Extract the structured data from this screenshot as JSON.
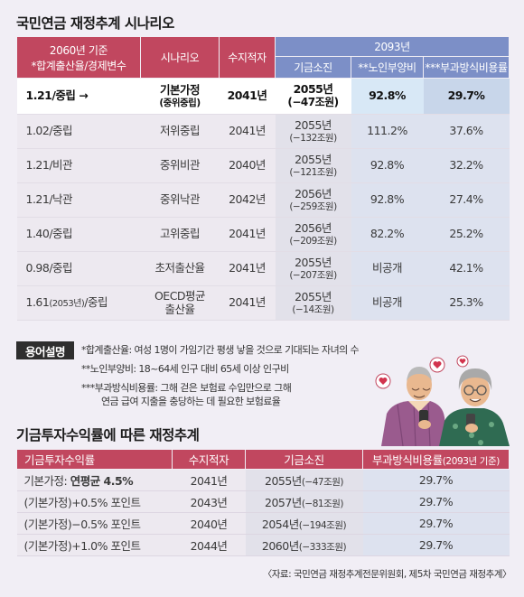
{
  "title": "국민연금 재정추계 시나리오",
  "scenario_table": {
    "headers": {
      "col0_line1": "2060년 기준",
      "col0_line2": "*합계출산율/경제변수",
      "scenario": "시나리오",
      "deficit_year": "수지적자",
      "group_2093": "2093년",
      "depletion": "기금소진",
      "dependency": "**노인부양비",
      "cost_rate": "***부과방식비용률"
    },
    "rows": [
      {
        "condition": "1.21/중립 →",
        "scenario": "기본가정",
        "scenario_sub": "(중위중립)",
        "deficit_year": "2041년",
        "depletion": "2055년",
        "depletion_sub": "(−47조원)",
        "dependency": "92.8%",
        "cost_rate": "29.7%"
      },
      {
        "condition": "1.02/중립",
        "scenario": "저위중립",
        "scenario_sub": "",
        "deficit_year": "2041년",
        "depletion": "2055년",
        "depletion_sub": "(−132조원)",
        "dependency": "111.2%",
        "cost_rate": "37.6%"
      },
      {
        "condition": "1.21/비관",
        "scenario": "중위비관",
        "scenario_sub": "",
        "deficit_year": "2040년",
        "depletion": "2055년",
        "depletion_sub": "(−121조원)",
        "dependency": "92.8%",
        "cost_rate": "32.2%"
      },
      {
        "condition": "1.21/낙관",
        "scenario": "중위낙관",
        "scenario_sub": "",
        "deficit_year": "2042년",
        "depletion": "2056년",
        "depletion_sub": "(−259조원)",
        "dependency": "92.8%",
        "cost_rate": "27.4%"
      },
      {
        "condition": "1.40/중립",
        "scenario": "고위중립",
        "scenario_sub": "",
        "deficit_year": "2041년",
        "depletion": "2056년",
        "depletion_sub": "(−209조원)",
        "dependency": "82.2%",
        "cost_rate": "25.2%"
      },
      {
        "condition": "0.98/중립",
        "scenario": "초저출산율",
        "scenario_sub": "",
        "deficit_year": "2041년",
        "depletion": "2055년",
        "depletion_sub": "(−207조원)",
        "dependency": "비공개",
        "cost_rate": "42.1%"
      },
      {
        "condition": "1.61",
        "condition_year": "(2053년)",
        "condition_tail": "/중립",
        "scenario": "OECD평균",
        "scenario_sub": "출산율",
        "deficit_year": "2041년",
        "depletion": "2055년",
        "depletion_sub": "(−14조원)",
        "dependency": "비공개",
        "cost_rate": "25.3%"
      }
    ]
  },
  "glossary": {
    "badge": "용어설명",
    "line1": "*합계출산율: 여성 1명이 가임기간 평생 낳을 것으로 기대되는 자녀의 수",
    "line2": "**노인부양비: 18~64세 인구 대비 65세 이상 인구비",
    "line3": "***부과방식비용률: 그해 걷은 보험료 수입만으로 그해",
    "line4": "연금 급여 지출을 충당하는 데 필요한 보험료율"
  },
  "return_section": {
    "title": "기금투자수익률에 따른 재정추계",
    "headers": {
      "return": "기금투자수익률",
      "deficit_year": "수지적자",
      "depletion": "기금소진",
      "cost_rate": "부과방식비용률",
      "cost_rate_note": "(2093년 기준)"
    },
    "rows": [
      {
        "label": "기본가정: ",
        "label_bold": "연평균 4.5%",
        "deficit_year": "2041년",
        "depletion": "2055년",
        "depletion_sub": "(−47조원)",
        "cost_rate": "29.7%"
      },
      {
        "label": "(기본가정)+0.5% 포인트",
        "label_bold": "",
        "deficit_year": "2043년",
        "depletion": "2057년",
        "depletion_sub": "(−81조원)",
        "cost_rate": "29.7%"
      },
      {
        "label": "(기본가정)−0.5% 포인트",
        "label_bold": "",
        "deficit_year": "2040년",
        "depletion": "2054년",
        "depletion_sub": "(−194조원)",
        "cost_rate": "29.7%"
      },
      {
        "label": "(기본가정)+1.0% 포인트",
        "label_bold": "",
        "deficit_year": "2044년",
        "depletion": "2060년",
        "depletion_sub": "(−333조원)",
        "cost_rate": "29.7%"
      }
    ]
  },
  "source": "〈자료: 국민연금 재정추계전문위원회, 제5차 국민연금 재정추계〉",
  "colors": {
    "header_red": "#c1475f",
    "header_blue": "#7c8fc7",
    "background": "#f1eef5"
  },
  "illustration": {
    "icons": [
      "elderly-couple-illustration",
      "heart-icon",
      "smartphone-icon"
    ]
  }
}
